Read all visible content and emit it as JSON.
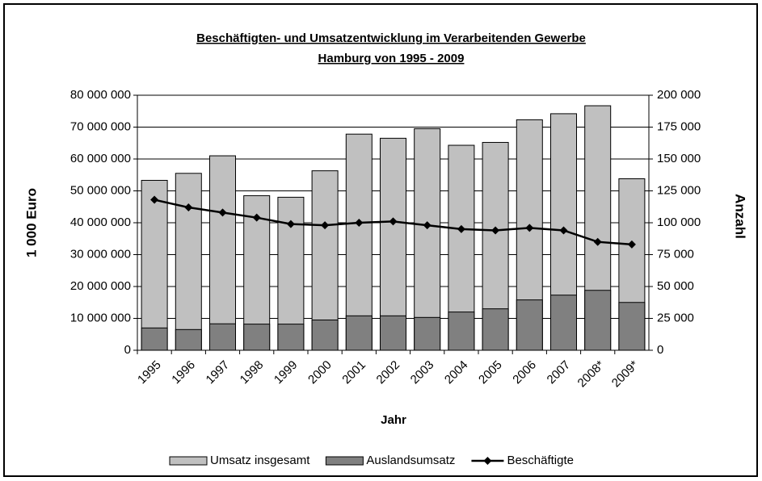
{
  "chart_data": {
    "type": "bar",
    "title": "Beschäftigten- und Umsatzentwicklung im Verarbeitenden Gewerbe",
    "subtitle": "Hamburg  von 1995 - 2009",
    "x_label": "Jahr",
    "y_label": "1 000 Euro",
    "y2_label": "Anzahl",
    "categories": [
      "1995",
      "1996",
      "1997",
      "1998",
      "1999",
      "2000",
      "2001",
      "2002",
      "2003",
      "2004",
      "2005",
      "2006",
      "2007",
      "2008*",
      "2009*"
    ],
    "series": [
      {
        "name": "Umsatz insgesamt",
        "type": "bar",
        "color": "#c0c0c0",
        "values": [
          53300000,
          55500000,
          61000000,
          48500000,
          48000000,
          56300000,
          67800000,
          66500000,
          69500000,
          64300000,
          65200000,
          72300000,
          74200000,
          76700000,
          53800000
        ]
      },
      {
        "name": "Auslandsumsatz",
        "type": "bar",
        "color": "#808080",
        "values": [
          7000000,
          6500000,
          8300000,
          8200000,
          8200000,
          9500000,
          10800000,
          10800000,
          10300000,
          12000000,
          13000000,
          15800000,
          17300000,
          18800000,
          15000000
        ]
      },
      {
        "name": "Beschäftigte",
        "type": "line",
        "axis": "y2",
        "color": "#000000",
        "values": [
          118000,
          112000,
          108000,
          104000,
          99000,
          98000,
          100000,
          101000,
          98000,
          95000,
          94000,
          96000,
          94000,
          85000,
          83000
        ]
      }
    ],
    "ylim": [
      0,
      80000000
    ],
    "yticks": [
      0,
      {
        "value": 10000000,
        "label": "10 000 000"
      },
      {
        "value": 20000000,
        "label": "20 000 000"
      },
      {
        "value": 30000000,
        "label": "30 000 000"
      },
      {
        "value": 40000000,
        "label": "40 000 000"
      },
      {
        "value": 50000000,
        "label": "50 000 000"
      },
      {
        "value": 60000000,
        "label": "60 000 000"
      },
      {
        "value": 70000000,
        "label": "70 000 000"
      },
      {
        "value": 80000000,
        "label": "80 000 000"
      }
    ],
    "y2lim": [
      0,
      200000
    ],
    "y2ticks": [
      0,
      {
        "value": 25000,
        "label": "25 000"
      },
      {
        "value": 50000,
        "label": "50 000"
      },
      {
        "value": 75000,
        "label": "75 000"
      },
      {
        "value": 100000,
        "label": "100 000"
      },
      {
        "value": 125000,
        "label": "125 000"
      },
      {
        "value": 150000,
        "label": "150 000"
      },
      {
        "value": 175000,
        "label": "175 000"
      },
      {
        "value": 200000,
        "label": "200 000"
      }
    ],
    "grid": true,
    "legend": "bottom"
  }
}
